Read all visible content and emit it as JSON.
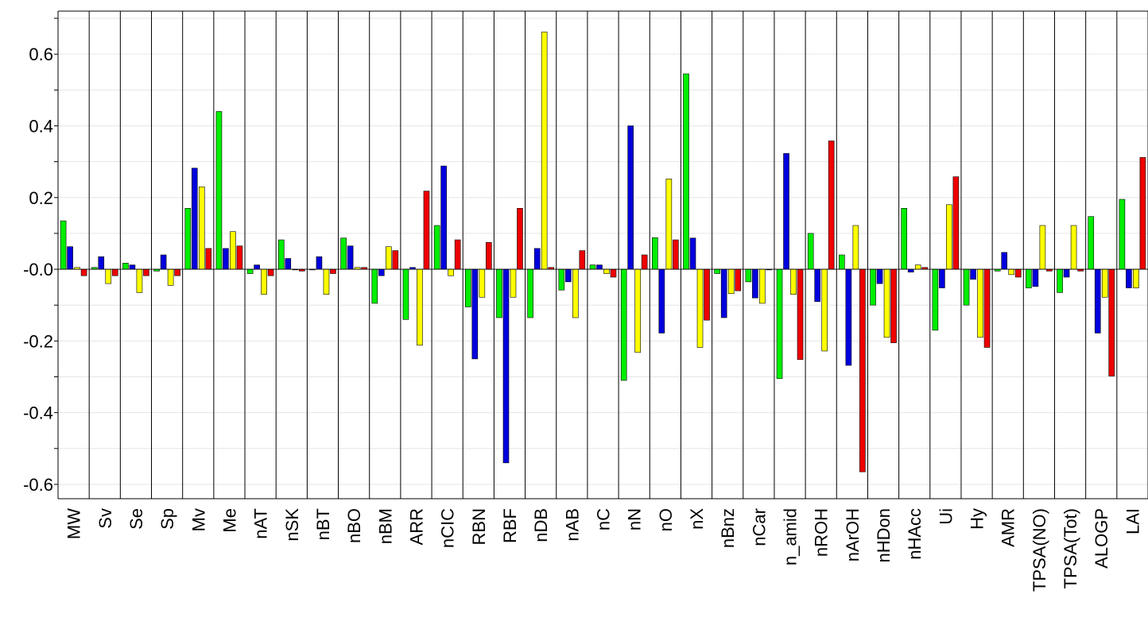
{
  "chart_data": {
    "type": "bar",
    "title": "",
    "xlabel": "",
    "ylabel": "",
    "ylim": [
      -0.64,
      0.72
    ],
    "yticks": [
      -0.6,
      -0.4,
      -0.2,
      0.0,
      0.2,
      0.4,
      0.6
    ],
    "ytick_labels": [
      "-0.6",
      "-0.4",
      "-0.2",
      "-0.0",
      "0.2",
      "0.4",
      "0.6"
    ],
    "grid": "horizontal",
    "legend": "none",
    "categories": [
      "MW",
      "Sv",
      "Se",
      "Sp",
      "Mv",
      "Me",
      "nAT",
      "nSK",
      "nBT",
      "nBO",
      "nBM",
      "ARR",
      "nCIC",
      "RBN",
      "RBF",
      "nDB",
      "nAB",
      "nC",
      "nN",
      "nO",
      "nX",
      "nBnz",
      "nCar",
      "n_amid",
      "nROH",
      "nArOH",
      "nHDon",
      "nHAcc",
      "Ui",
      "Hy",
      "AMR",
      "TPSA(NO)",
      "TPSA(Tot)",
      "ALOGP",
      "LAI"
    ],
    "series": [
      {
        "color": "#00ee00",
        "values": [
          0.135,
          0.005,
          0.017,
          -0.005,
          0.17,
          0.44,
          -0.012,
          0.082,
          0.0,
          0.087,
          -0.095,
          -0.14,
          0.122,
          -0.105,
          -0.135,
          -0.135,
          -0.058,
          0.012,
          -0.31,
          0.088,
          0.545,
          -0.012,
          -0.035,
          -0.305,
          0.1,
          0.04,
          -0.1,
          0.17,
          -0.17,
          -0.1,
          -0.005,
          -0.052,
          -0.065,
          0.147,
          0.195
        ]
      },
      {
        "color": "#0000dd",
        "values": [
          0.063,
          0.035,
          0.012,
          0.04,
          0.282,
          0.058,
          0.012,
          0.03,
          0.035,
          0.065,
          -0.018,
          0.005,
          0.288,
          -0.25,
          -0.54,
          0.058,
          -0.035,
          0.012,
          0.4,
          -0.178,
          0.087,
          -0.135,
          -0.08,
          0.323,
          -0.09,
          -0.268,
          -0.04,
          -0.008,
          -0.052,
          -0.028,
          0.047,
          -0.048,
          -0.022,
          -0.178,
          -0.052
        ]
      },
      {
        "color": "#ffff00",
        "values": [
          0.005,
          -0.04,
          -0.065,
          -0.045,
          0.23,
          0.105,
          -0.07,
          0.0,
          -0.07,
          0.005,
          0.063,
          -0.212,
          -0.018,
          -0.078,
          -0.078,
          0.662,
          -0.135,
          -0.012,
          -0.232,
          0.252,
          -0.218,
          -0.068,
          -0.095,
          -0.07,
          -0.228,
          0.122,
          -0.19,
          0.012,
          0.18,
          -0.19,
          -0.015,
          0.122,
          0.122,
          -0.078,
          -0.052
        ]
      },
      {
        "color": "#ee0000",
        "values": [
          -0.018,
          -0.018,
          -0.018,
          -0.018,
          0.058,
          0.065,
          -0.018,
          -0.005,
          -0.012,
          0.005,
          0.052,
          0.218,
          0.082,
          0.075,
          0.17,
          0.005,
          0.052,
          -0.022,
          0.04,
          0.082,
          -0.142,
          -0.06,
          0.0,
          -0.252,
          0.358,
          -0.565,
          -0.205,
          0.005,
          0.258,
          -0.218,
          -0.022,
          -0.005,
          -0.005,
          -0.298,
          0.312
        ]
      }
    ]
  }
}
